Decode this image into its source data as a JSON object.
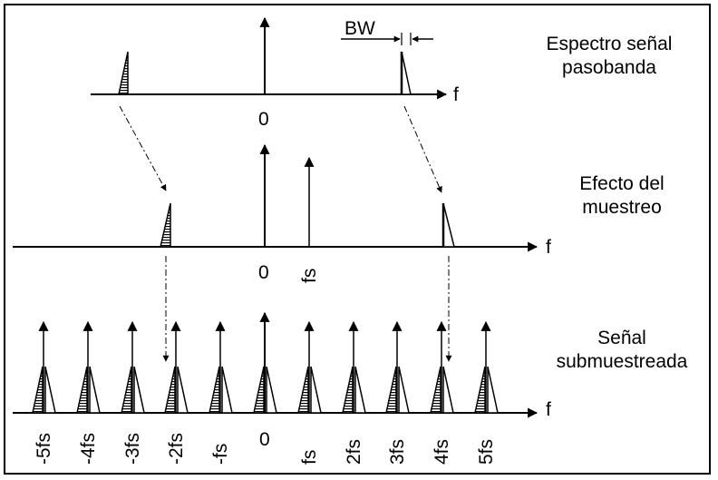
{
  "diagram": {
    "top": {
      "title_line1": "Espectro señal",
      "title_line2": "pasobanda",
      "bandwidth_label": "BW",
      "axis_label": "f",
      "origin_label": "0"
    },
    "middle": {
      "title_line1": "Efecto del",
      "title_line2": "muestreo",
      "axis_label": "f",
      "origin_label": "0",
      "fs_label": "fs"
    },
    "bottom": {
      "title_line1": "Señal",
      "title_line2": "submuestreada",
      "axis_label": "f",
      "ticks": [
        "-5fs",
        "-4fs",
        "-3fs",
        "-2fs",
        "-fs",
        "0",
        "fs",
        "2fs",
        "3fs",
        "4fs",
        "5fs"
      ]
    }
  }
}
